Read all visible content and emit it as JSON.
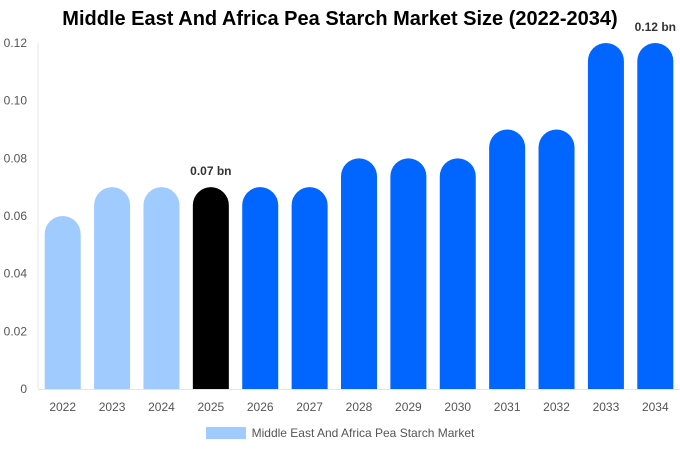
{
  "chart_data": {
    "type": "bar",
    "title": "Middle East And Africa Pea Starch Market Size (2022-2034)",
    "categories": [
      "2022",
      "2023",
      "2024",
      "2025",
      "2026",
      "2027",
      "2028",
      "2029",
      "2030",
      "2031",
      "2032",
      "2033",
      "2034"
    ],
    "series": [
      {
        "name": "Middle East And Africa Pea Starch Market",
        "values": [
          0.06,
          0.07,
          0.07,
          0.07,
          0.07,
          0.07,
          0.08,
          0.08,
          0.08,
          0.09,
          0.09,
          0.12,
          0.12
        ]
      }
    ],
    "bar_colors": [
      "#a0cbff",
      "#a0cbff",
      "#a0cbff",
      "#000000",
      "#0066ff",
      "#0066ff",
      "#0066ff",
      "#0066ff",
      "#0066ff",
      "#0066ff",
      "#0066ff",
      "#0066ff",
      "#0066ff"
    ],
    "data_labels": [
      {
        "category": "2025",
        "text": "0.07 bn"
      },
      {
        "category": "2034",
        "text": "0.12 bn"
      }
    ],
    "yticks": [
      "0",
      "0.02",
      "0.04",
      "0.06",
      "0.08",
      "0.10",
      "0.12"
    ],
    "ylim": [
      0,
      0.12
    ],
    "xlabel": "",
    "ylabel": "",
    "grid": false,
    "legend": "bottom",
    "legend_color": "#a0cbff"
  }
}
